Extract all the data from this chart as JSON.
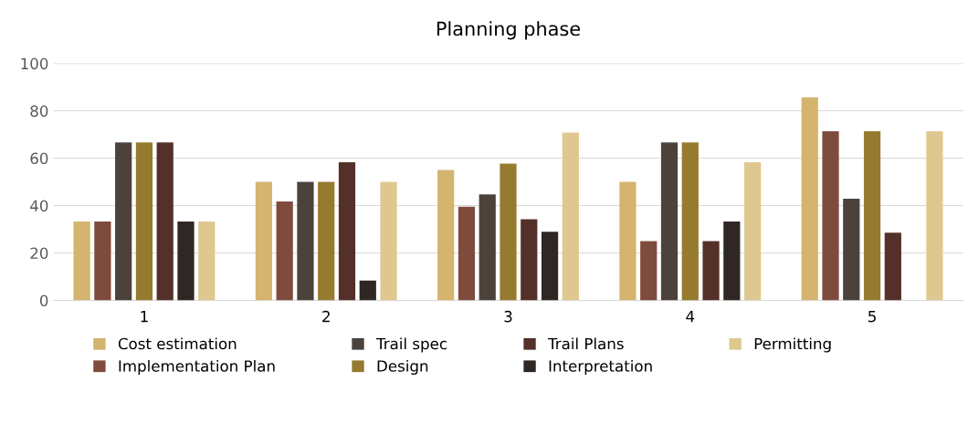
{
  "chart_data": {
    "type": "bar",
    "title": "Planning phase",
    "categories": [
      "1",
      "2",
      "3",
      "4",
      "5"
    ],
    "series": [
      {
        "name": "Cost estimation",
        "color": "#d4b46e",
        "values": [
          33.3,
          50,
          55,
          50,
          85.7
        ]
      },
      {
        "name": "Implementation Plan",
        "color": "#7f4b3d",
        "values": [
          33.3,
          41.7,
          39.5,
          25,
          71.4
        ]
      },
      {
        "name": "Trail spec",
        "color": "#4c423c",
        "values": [
          66.7,
          50,
          44.7,
          66.7,
          42.9
        ]
      },
      {
        "name": "Design",
        "color": "#967a2f",
        "values": [
          66.7,
          50,
          57.7,
          66.7,
          71.4
        ]
      },
      {
        "name": "Trail Plans",
        "color": "#55302a",
        "values": [
          66.7,
          58.3,
          34.2,
          25,
          28.6
        ]
      },
      {
        "name": "Interpretation",
        "color": "#2f2723",
        "values": [
          33.3,
          8.3,
          28.9,
          33.3,
          0
        ]
      },
      {
        "name": "Permitting",
        "color": "#dfc88f",
        "values": [
          33.3,
          50,
          70.8,
          58.3,
          71.4
        ]
      }
    ],
    "ylim": [
      0,
      100
    ],
    "yticks": [
      0,
      20,
      40,
      60,
      80,
      100
    ],
    "grid": "y",
    "legend": "bottom"
  }
}
